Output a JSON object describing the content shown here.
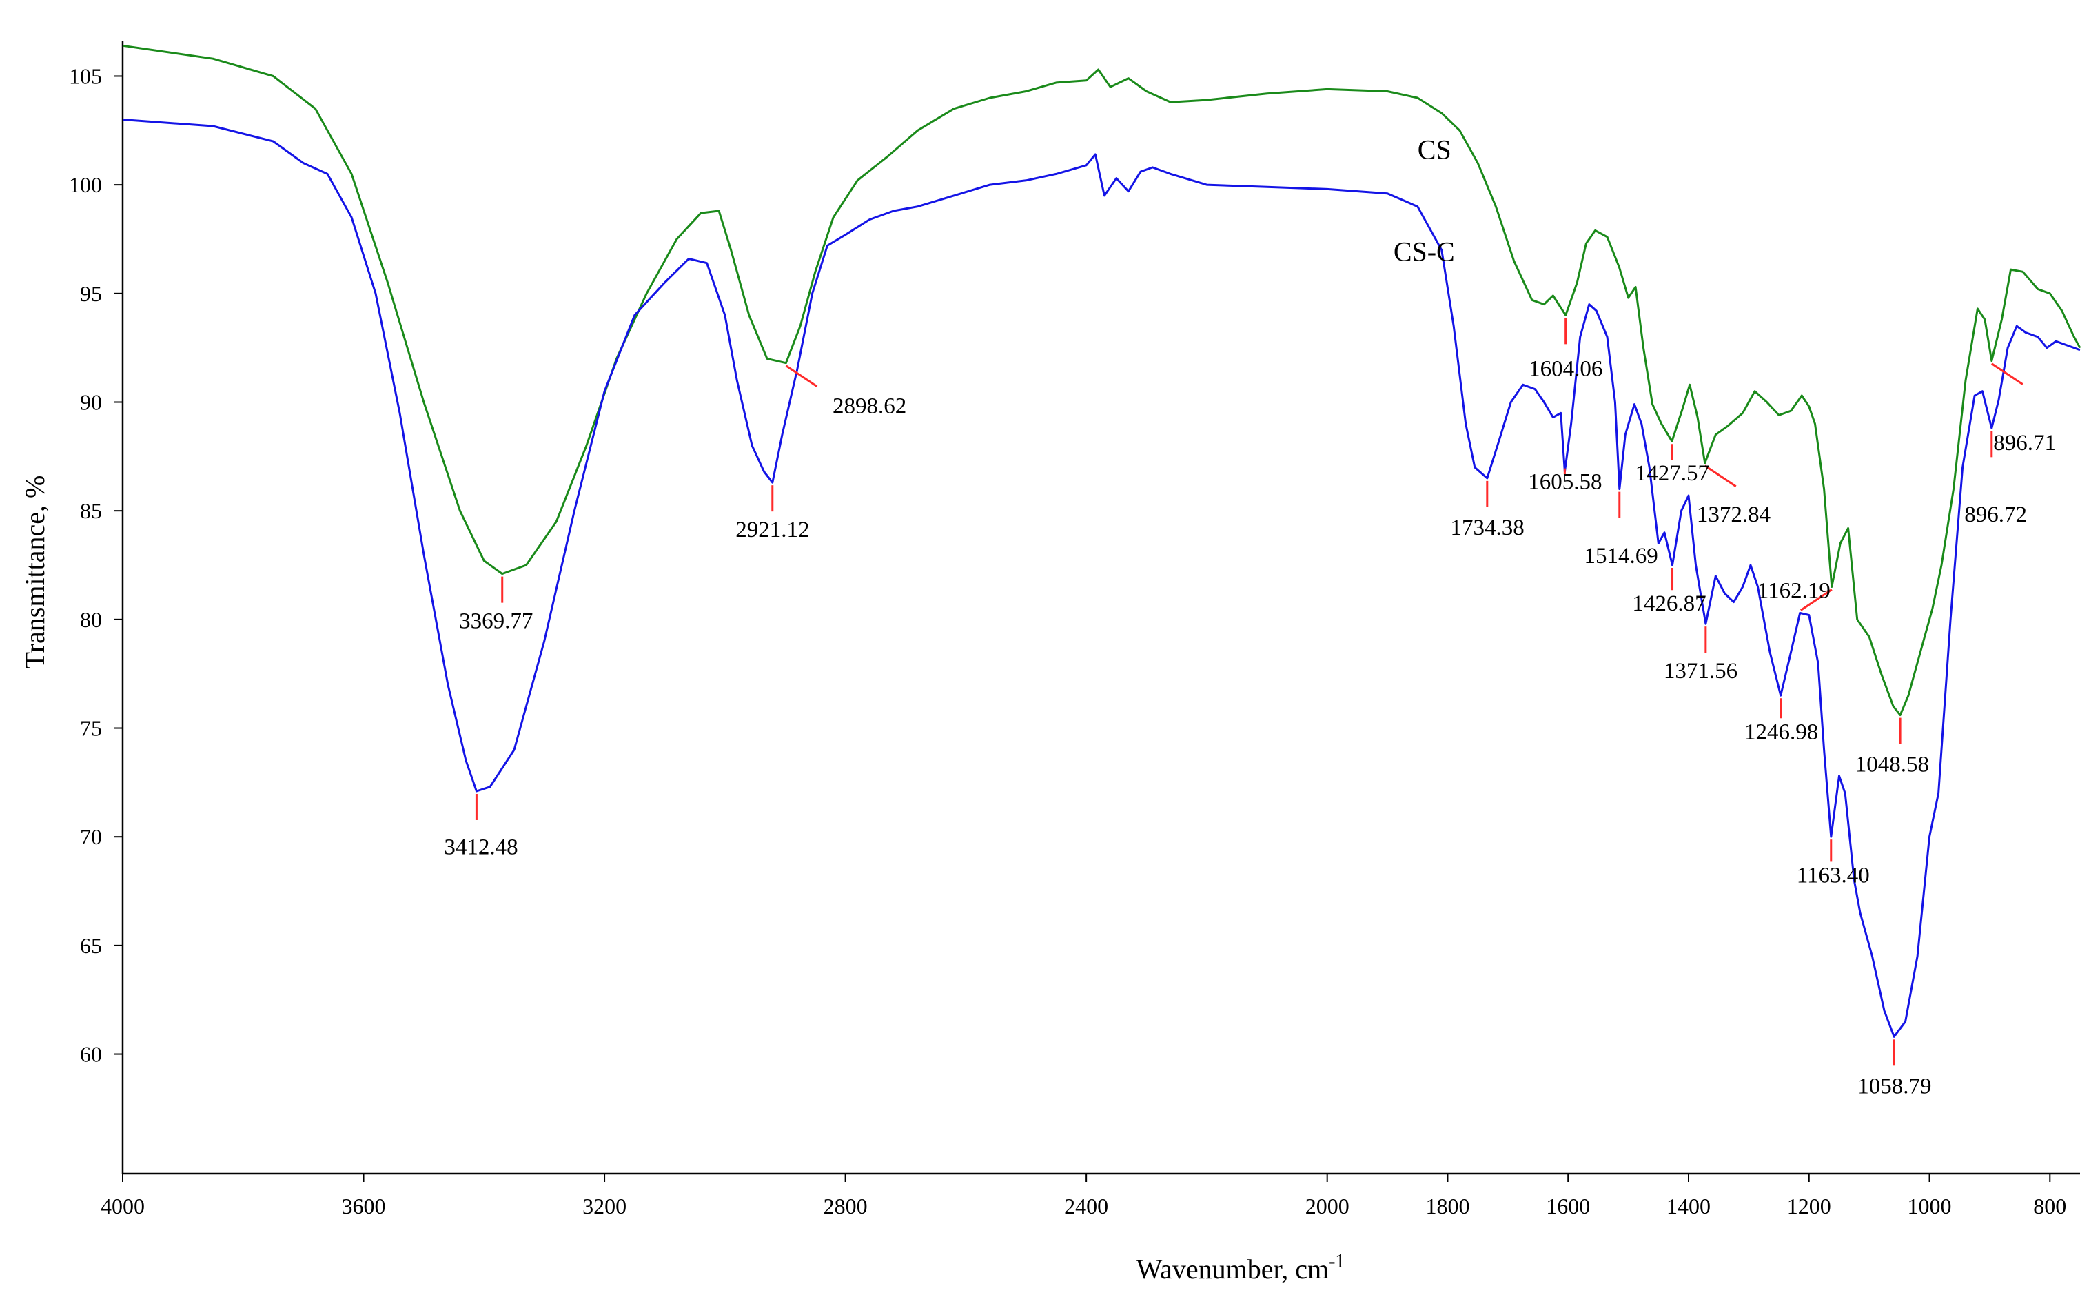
{
  "chart_data": {
    "type": "line",
    "title": "",
    "xlabel": "Wavenumber, cm",
    "xlabel_superscript": "-1",
    "ylabel": "Transmittance, %",
    "xlim": [
      4000,
      750
    ],
    "ylim": [
      54.5,
      106.6
    ],
    "x_reversed": true,
    "grid": false,
    "x_ticks": [
      4000,
      3600,
      3200,
      2800,
      2400,
      2000,
      1800,
      1600,
      1400,
      1200,
      1000,
      800
    ],
    "y_ticks": [
      60,
      65,
      70,
      75,
      80,
      85,
      90,
      95,
      100,
      105
    ],
    "colors": {
      "CS": "#1a8a1a",
      "CS-C": "#1414e6",
      "marker": "#ff2a2a"
    },
    "series": [
      {
        "name": "CS",
        "x": [
          4000,
          3850,
          3750,
          3680,
          3620,
          3560,
          3500,
          3440,
          3400,
          3369.77,
          3330,
          3280,
          3230,
          3180,
          3130,
          3080,
          3040,
          3010,
          2990,
          2960,
          2930,
          2898.62,
          2875,
          2850,
          2820,
          2780,
          2730,
          2680,
          2620,
          2560,
          2500,
          2450,
          2400,
          2380,
          2360,
          2330,
          2300,
          2260,
          2200,
          2100,
          2000,
          1900,
          1850,
          1810,
          1780,
          1750,
          1720,
          1690,
          1660,
          1640,
          1625,
          1604.06,
          1585,
          1570,
          1555,
          1535,
          1515,
          1500,
          1488,
          1475,
          1460,
          1445,
          1427.57,
          1410,
          1398,
          1385,
          1372.84,
          1355,
          1335,
          1310,
          1290,
          1270,
          1250,
          1230,
          1212,
          1200,
          1190,
          1175,
          1162.19,
          1148,
          1135,
          1120,
          1100,
          1080,
          1060,
          1048.58,
          1035,
          1015,
          995,
          980,
          960,
          940,
          920,
          908,
          896.71,
          880,
          865,
          845,
          820,
          800,
          780,
          760,
          750
        ],
        "y": [
          106.4,
          105.8,
          105.0,
          103.5,
          100.5,
          95.5,
          90.0,
          85.0,
          82.7,
          82.1,
          82.5,
          84.5,
          88.0,
          92.0,
          95.0,
          97.5,
          98.7,
          98.8,
          97.0,
          94.0,
          92.0,
          91.8,
          93.5,
          96.0,
          98.5,
          100.2,
          101.3,
          102.5,
          103.5,
          104.0,
          104.3,
          104.7,
          104.8,
          105.3,
          104.5,
          104.9,
          104.3,
          103.8,
          103.9,
          104.2,
          104.4,
          104.3,
          104.0,
          103.3,
          102.5,
          101.0,
          99.0,
          96.5,
          94.7,
          94.5,
          94.9,
          94.0,
          95.5,
          97.3,
          97.9,
          97.6,
          96.2,
          94.8,
          95.3,
          92.5,
          89.9,
          89.0,
          88.2,
          89.7,
          90.8,
          89.3,
          87.2,
          88.5,
          88.9,
          89.5,
          90.5,
          90.0,
          89.4,
          89.6,
          90.3,
          89.8,
          89.0,
          86.0,
          81.5,
          83.5,
          84.2,
          80.0,
          79.2,
          77.5,
          76.0,
          75.6,
          76.5,
          78.5,
          80.5,
          82.5,
          86.0,
          91.0,
          94.3,
          93.8,
          91.9,
          93.8,
          96.1,
          96.0,
          95.2,
          95.0,
          94.2,
          93.0,
          92.5
        ]
      },
      {
        "name": "CS-C",
        "x": [
          4000,
          3850,
          3750,
          3700,
          3660,
          3620,
          3580,
          3540,
          3500,
          3460,
          3430,
          3412.48,
          3390,
          3350,
          3300,
          3250,
          3200,
          3150,
          3100,
          3060,
          3030,
          3000,
          2980,
          2955,
          2935,
          2921.12,
          2905,
          2880,
          2855,
          2830,
          2800,
          2760,
          2720,
          2680,
          2620,
          2560,
          2500,
          2450,
          2400,
          2385,
          2370,
          2350,
          2330,
          2310,
          2290,
          2260,
          2200,
          2100,
          2000,
          1900,
          1850,
          1810,
          1790,
          1770,
          1755,
          1734.38,
          1715,
          1695,
          1675,
          1655,
          1640,
          1625,
          1612,
          1605.58,
          1595,
          1580,
          1565,
          1553,
          1535,
          1522,
          1514.69,
          1505,
          1490,
          1478,
          1465,
          1450,
          1440,
          1426.87,
          1412,
          1400,
          1388,
          1371.56,
          1355,
          1340,
          1325,
          1310,
          1297,
          1285,
          1265,
          1246.98,
          1230,
          1215,
          1200,
          1185,
          1175,
          1163.4,
          1150,
          1140,
          1125,
          1115,
          1095,
          1075,
          1058.79,
          1040,
          1020,
          1000,
          985,
          965,
          945,
          925,
          912,
          896.72,
          885,
          870,
          855,
          840,
          820,
          805,
          790,
          770,
          750
        ],
        "y": [
          103.0,
          102.7,
          102.0,
          101.0,
          100.5,
          98.5,
          95.0,
          89.5,
          83.0,
          77.0,
          73.5,
          72.1,
          72.3,
          74.0,
          79.0,
          85.0,
          90.5,
          94.0,
          95.5,
          96.6,
          96.4,
          94.0,
          91.0,
          88.0,
          86.8,
          86.3,
          88.5,
          91.5,
          95.0,
          97.2,
          97.7,
          98.4,
          98.8,
          99.0,
          99.5,
          100.0,
          100.2,
          100.5,
          100.9,
          101.4,
          99.5,
          100.3,
          99.7,
          100.6,
          100.8,
          100.5,
          100.0,
          99.9,
          99.8,
          99.6,
          99.0,
          97.0,
          93.5,
          89.0,
          87.0,
          86.5,
          88.2,
          90.0,
          90.8,
          90.6,
          90.0,
          89.3,
          89.5,
          86.8,
          89.0,
          93.0,
          94.5,
          94.2,
          93.0,
          90.0,
          86.0,
          88.5,
          89.9,
          89.0,
          87.0,
          83.5,
          84.0,
          82.5,
          85.0,
          85.7,
          82.5,
          79.8,
          82.0,
          81.2,
          80.8,
          81.5,
          82.5,
          81.5,
          78.5,
          76.5,
          78.5,
          80.3,
          80.2,
          78.0,
          74.0,
          70.0,
          72.8,
          72.0,
          68.0,
          66.5,
          64.5,
          62.0,
          60.8,
          61.5,
          64.5,
          70.0,
          72.0,
          80.0,
          87.0,
          90.3,
          90.5,
          88.8,
          90.1,
          92.5,
          93.5,
          93.2,
          93.0,
          92.5,
          92.8,
          92.6,
          92.4
        ]
      }
    ],
    "series_labels": [
      {
        "series": "CS",
        "text": "CS",
        "x": 1850,
        "y": 101.2
      },
      {
        "series": "CS-C",
        "text": "CS-C",
        "x": 1890,
        "y": 96.5
      }
    ],
    "peak_labels": [
      {
        "series": "CS",
        "text": "3369.77",
        "x": 3369.77,
        "y": 82.1,
        "tx": 3380,
        "ty": 79.6
      },
      {
        "series": "CS",
        "text": "2898.62",
        "x": 2898.62,
        "y": 91.8,
        "tx": 2760,
        "ty": 89.5
      },
      {
        "series": "CS",
        "text": "1604.06",
        "x": 1604.06,
        "y": 94.0,
        "tx": 1604,
        "ty": 91.2
      },
      {
        "series": "CS",
        "text": "1427.57",
        "x": 1427.57,
        "y": 88.2,
        "tx": 1427,
        "ty": 86.4
      },
      {
        "series": "CS",
        "text": "1372.84",
        "x": 1372.84,
        "y": 87.2,
        "tx": 1325,
        "ty": 84.5
      },
      {
        "series": "CS",
        "text": "1162.19",
        "x": 1162.19,
        "y": 81.5,
        "tx": 1225,
        "ty": 81.0
      },
      {
        "series": "CS",
        "text": "1048.58",
        "x": 1048.58,
        "y": 75.6,
        "tx": 1062,
        "ty": 73.0
      },
      {
        "series": "CS",
        "text": "896.71",
        "x": 896.71,
        "y": 91.9,
        "tx": 842,
        "ty": 87.8
      },
      {
        "series": "CS-C",
        "text": "3412.48",
        "x": 3412.48,
        "y": 72.1,
        "tx": 3405,
        "ty": 69.2
      },
      {
        "series": "CS-C",
        "text": "2921.12",
        "x": 2921.12,
        "y": 86.3,
        "tx": 2921,
        "ty": 83.8
      },
      {
        "series": "CS-C",
        "text": "1734.38",
        "x": 1734.38,
        "y": 86.5,
        "tx": 1734,
        "ty": 83.9
      },
      {
        "series": "CS-C",
        "text": "1605.58",
        "x": 1605.58,
        "y": 86.8,
        "tx": 1605,
        "ty": 86.0
      },
      {
        "series": "CS-C",
        "text": "1514.69",
        "x": 1514.69,
        "y": 86.0,
        "tx": 1512,
        "ty": 82.6
      },
      {
        "series": "CS-C",
        "text": "1426.87",
        "x": 1426.87,
        "y": 82.5,
        "tx": 1432,
        "ty": 80.4
      },
      {
        "series": "CS-C",
        "text": "1371.56",
        "x": 1371.56,
        "y": 79.8,
        "tx": 1380,
        "ty": 77.3
      },
      {
        "series": "CS-C",
        "text": "1246.98",
        "x": 1246.98,
        "y": 76.5,
        "tx": 1246,
        "ty": 74.5
      },
      {
        "series": "CS-C",
        "text": "1163.40",
        "x": 1163.4,
        "y": 70.0,
        "tx": 1160,
        "ty": 67.9
      },
      {
        "series": "CS-C",
        "text": "1058.79",
        "x": 1058.79,
        "y": 60.8,
        "tx": 1058,
        "ty": 58.2
      },
      {
        "series": "CS-C",
        "text": "896.72",
        "x": 896.72,
        "y": 88.8,
        "tx": 890,
        "ty": 84.5
      }
    ]
  }
}
